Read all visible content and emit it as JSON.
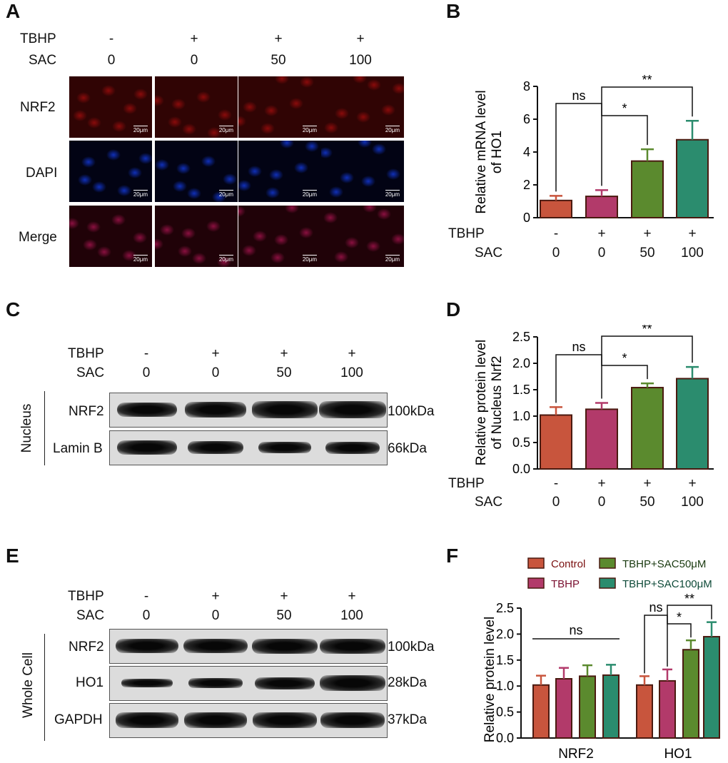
{
  "panels": {
    "A": "A",
    "B": "B",
    "C": "C",
    "D": "D",
    "E": "E",
    "F": "F"
  },
  "condition_labels": {
    "tbhp": "TBHP",
    "sac": "SAC"
  },
  "conditions": {
    "tbhp": [
      "-",
      "+",
      "+",
      "+"
    ],
    "sac": [
      "0",
      "0",
      "50",
      "100"
    ]
  },
  "panel_a": {
    "rows": [
      "NRF2",
      "DAPI",
      "Merge"
    ],
    "scale_bar": "20μm",
    "row_colors": [
      "#8a0b0b",
      "#1030b8",
      "#8a1040"
    ]
  },
  "panel_c": {
    "group_label": "Nucleus",
    "rows": [
      "NRF2",
      "Lamin B"
    ],
    "markers": [
      "100kDa",
      "66kDa"
    ]
  },
  "panel_e": {
    "group_label": "Whole Cell",
    "rows": [
      "NRF2",
      "HO1",
      "GAPDH"
    ],
    "markers": [
      "100kDa",
      "28kDa",
      "37kDa"
    ]
  },
  "colors": {
    "control": "#c8553d",
    "tbhp": "#b23a6a",
    "sac50": "#5b8a2e",
    "sac100": "#2b8c6e"
  },
  "chart_data": [
    {
      "panel": "B",
      "type": "bar",
      "categories": [
        "0",
        "0",
        "50",
        "100"
      ],
      "values": [
        1.05,
        1.3,
        3.45,
        4.75
      ],
      "errors": [
        0.28,
        0.38,
        0.72,
        1.15
      ],
      "ylabel": "Relative mRNA level of HO1",
      "ylim": [
        0,
        8
      ],
      "yticks": [
        "0",
        "2",
        "4",
        "6",
        "8"
      ],
      "significance": [
        "ns",
        "*",
        "**"
      ]
    },
    {
      "panel": "D",
      "type": "bar",
      "categories": [
        "0",
        "0",
        "50",
        "100"
      ],
      "values": [
        1.02,
        1.13,
        1.54,
        1.71
      ],
      "errors": [
        0.15,
        0.12,
        0.08,
        0.22
      ],
      "ylabel": "Relative protein level of Nucleus Nrf2",
      "ylim": [
        0,
        2.5
      ],
      "yticks": [
        "0.0",
        "0.5",
        "1.0",
        "1.5",
        "2.0",
        "2.5"
      ],
      "significance": [
        "ns",
        "*",
        "**"
      ]
    },
    {
      "panel": "F",
      "type": "bar",
      "categories": [
        "NRF2",
        "HO1"
      ],
      "series": [
        {
          "name": "Control",
          "values": [
            1.02,
            1.02
          ],
          "errors": [
            0.18,
            0.17
          ]
        },
        {
          "name": "TBHP",
          "values": [
            1.14,
            1.1
          ],
          "errors": [
            0.21,
            0.22
          ]
        },
        {
          "name": "TBHP+SAC50μM",
          "values": [
            1.19,
            1.7
          ],
          "errors": [
            0.21,
            0.18
          ]
        },
        {
          "name": "TBHP+SAC100μM",
          "values": [
            1.21,
            1.95
          ],
          "errors": [
            0.2,
            0.28
          ]
        }
      ],
      "ylabel": "Relative protein level",
      "ylim": [
        0,
        2.5
      ],
      "yticks": [
        "0.0",
        "0.5",
        "1.0",
        "1.5",
        "2.0",
        "2.5"
      ],
      "significance": [
        "ns",
        "ns",
        "*",
        "**"
      ],
      "legend_position": "top"
    }
  ]
}
